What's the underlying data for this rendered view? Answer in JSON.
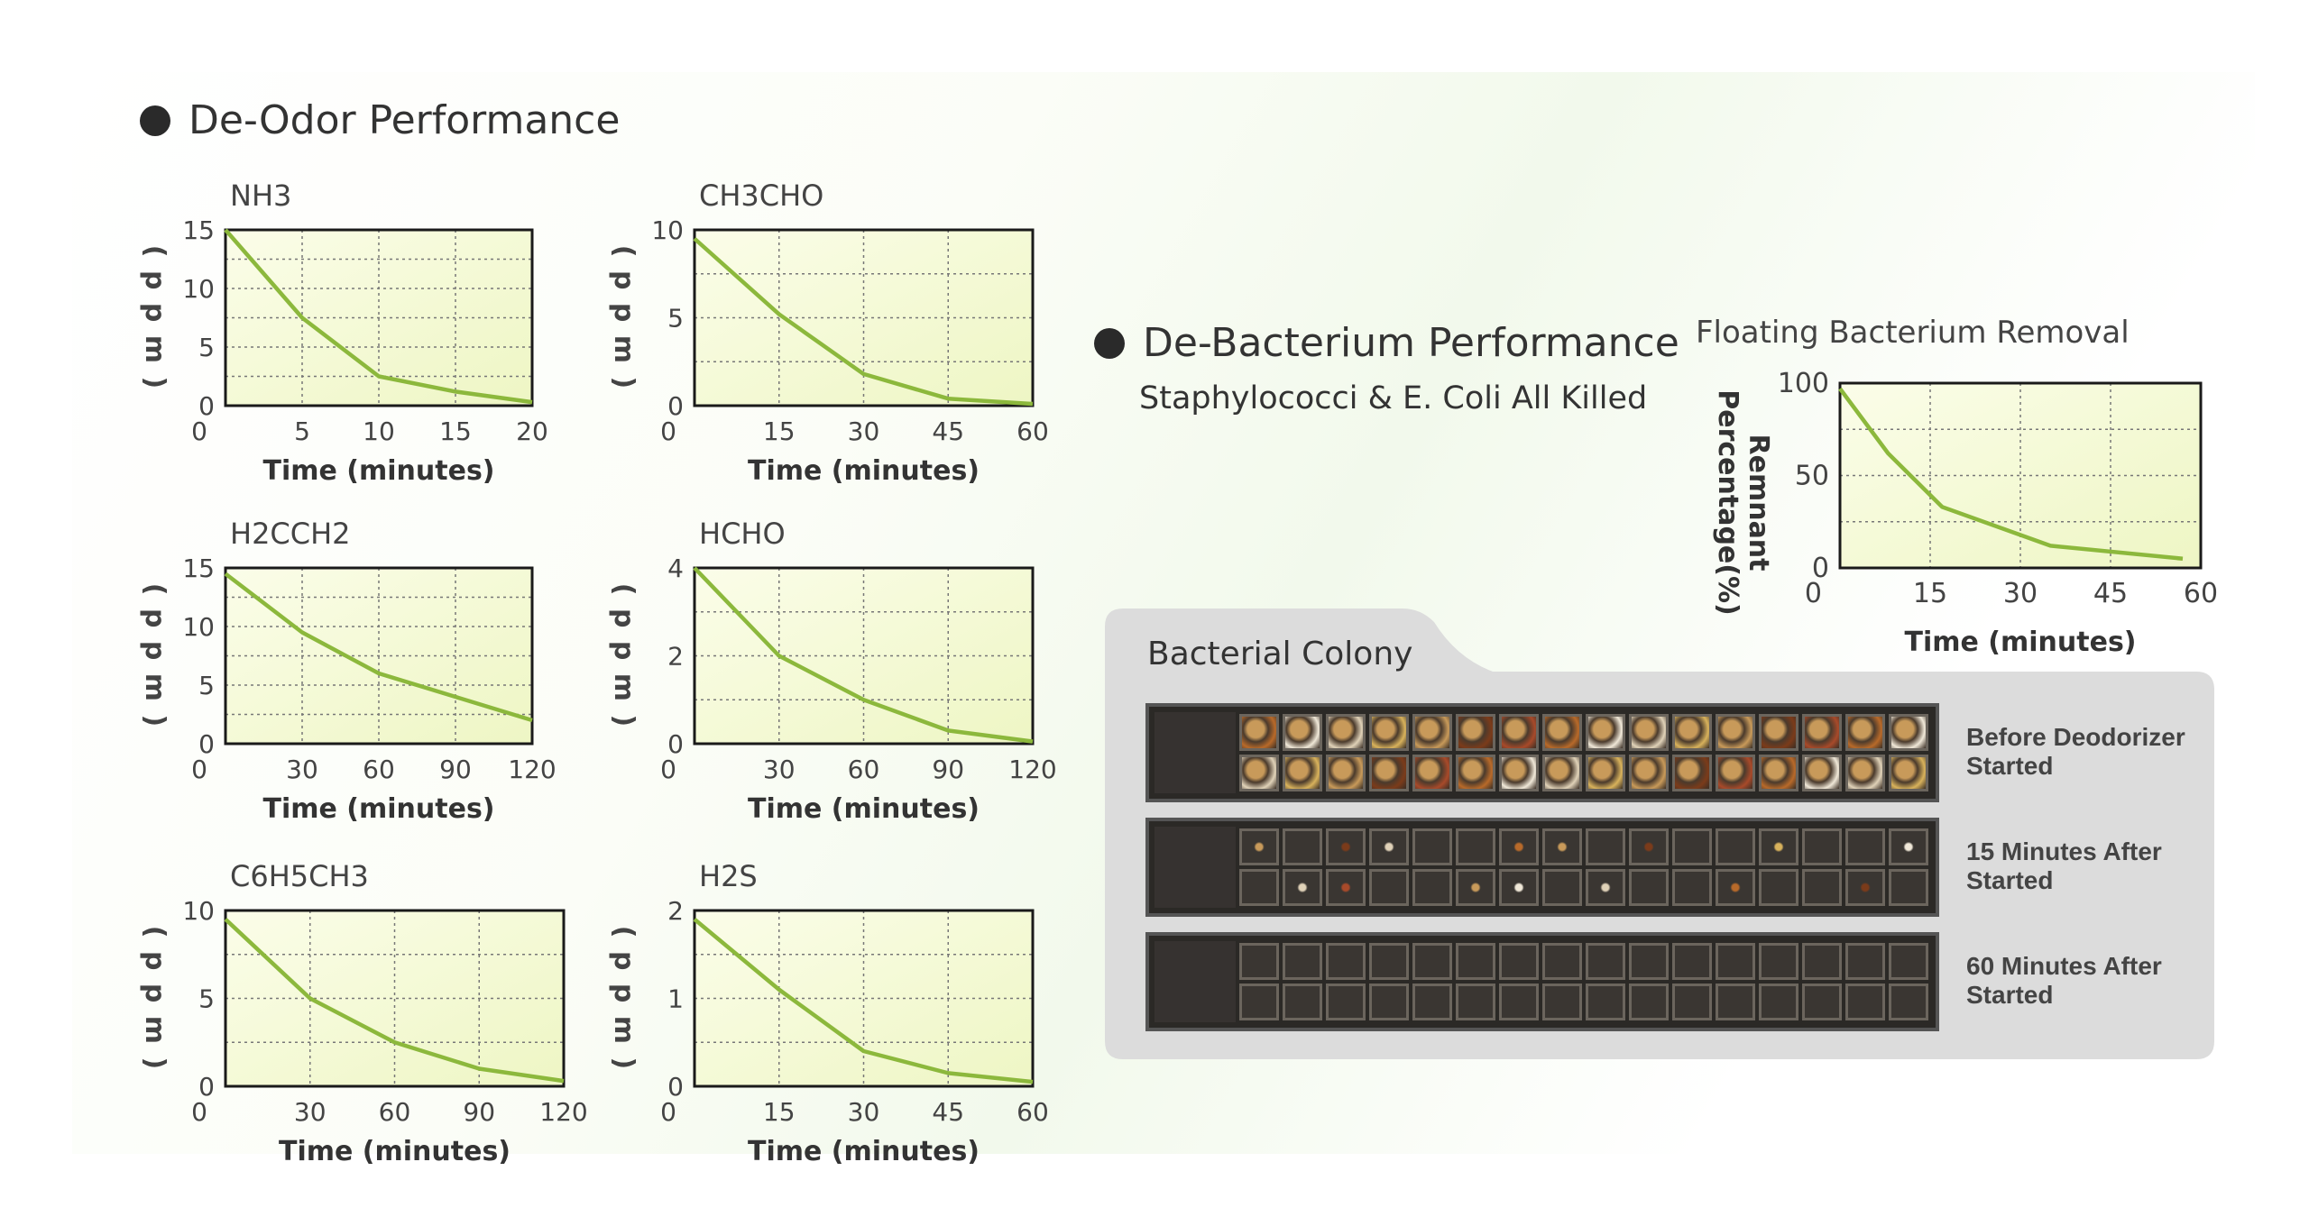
{
  "deodor": {
    "title": "De-Odor Performance"
  },
  "debacterium": {
    "title": "De-Bacterium Performance",
    "subtitle": "Staphylococci & E. Coli All Killed"
  },
  "colony": {
    "title": "Bacterial Colony",
    "rows": [
      {
        "label_line1": "Before Deodorizer",
        "label_line2": "Started",
        "growth": "heavy"
      },
      {
        "label_line1": "15 Minutes After",
        "label_line2": "Started",
        "growth": "sparse"
      },
      {
        "label_line1": "60 Minutes After",
        "label_line2": "Started",
        "growth": "none"
      }
    ]
  },
  "colors": {
    "line": "#8cb83c",
    "plot_bg_light": "#fbfde9",
    "plot_bg_dark": "#eef6c4",
    "frame": "#1a1a1a"
  },
  "chart_data": [
    {
      "type": "line",
      "title": "NH3",
      "xlabel": "Time (minutes)",
      "ylabel": "( p p m )",
      "x": [
        0,
        5,
        10,
        15,
        20
      ],
      "y": [
        15,
        7.5,
        2.5,
        1.2,
        0.3
      ],
      "xticks": [
        5,
        10,
        15,
        20
      ],
      "xlim": [
        0,
        20
      ],
      "yticks": [
        0,
        5,
        10,
        15
      ],
      "ylim": [
        0,
        15
      ],
      "grid": true
    },
    {
      "type": "line",
      "title": "CH3CHO",
      "xlabel": "Time (minutes)",
      "ylabel": "( p p m )",
      "x": [
        0,
        15,
        30,
        45,
        60
      ],
      "y": [
        9.5,
        5.2,
        1.8,
        0.4,
        0.1
      ],
      "xticks": [
        15,
        30,
        45,
        60
      ],
      "xlim": [
        0,
        60
      ],
      "yticks": [
        0,
        5,
        10
      ],
      "ylim": [
        0,
        10
      ],
      "grid": true
    },
    {
      "type": "line",
      "title": "H2CCH2",
      "xlabel": "Time (minutes)",
      "ylabel": "( p p m )",
      "x": [
        0,
        30,
        60,
        90,
        120
      ],
      "y": [
        14.5,
        9.5,
        6,
        4,
        2
      ],
      "xticks": [
        30,
        60,
        90,
        120
      ],
      "xlim": [
        0,
        120
      ],
      "yticks": [
        0,
        5,
        10,
        15
      ],
      "ylim": [
        0,
        15
      ],
      "grid": true
    },
    {
      "type": "line",
      "title": "HCHO",
      "xlabel": "Time (minutes)",
      "ylabel": "( p p m )",
      "x": [
        0,
        30,
        60,
        90,
        120
      ],
      "y": [
        4,
        2,
        1,
        0.3,
        0.05
      ],
      "xticks": [
        30,
        60,
        90,
        120
      ],
      "xlim": [
        0,
        120
      ],
      "yticks": [
        0,
        2,
        4
      ],
      "ylim": [
        0,
        4
      ],
      "grid": true
    },
    {
      "type": "line",
      "title": "C6H5CH3",
      "xlabel": "Time (minutes)",
      "ylabel": "( p p m )",
      "x": [
        0,
        30,
        60,
        90,
        120
      ],
      "y": [
        9.5,
        5,
        2.5,
        1,
        0.3
      ],
      "xticks": [
        30,
        60,
        90,
        120
      ],
      "xlim": [
        0,
        120
      ],
      "yticks": [
        0,
        5,
        10
      ],
      "ylim": [
        0,
        10
      ],
      "grid": true
    },
    {
      "type": "line",
      "title": "H2S",
      "xlabel": "Time (minutes)",
      "ylabel": "( p p m )",
      "x": [
        0,
        15,
        30,
        45,
        60
      ],
      "y": [
        1.9,
        1.1,
        0.4,
        0.15,
        0.05
      ],
      "xticks": [
        15,
        30,
        45,
        60
      ],
      "xlim": [
        0,
        60
      ],
      "yticks": [
        0,
        1,
        2
      ],
      "ylim": [
        0,
        2
      ],
      "grid": true
    },
    {
      "type": "line",
      "title": "Floating Bacterium Removal",
      "xlabel": "Time (minutes)",
      "ylabel": "Remnant Percentage(%)",
      "x": [
        0,
        8,
        17,
        35,
        57
      ],
      "y": [
        97,
        62,
        33,
        12,
        5
      ],
      "xticks": [
        15,
        30,
        45,
        60
      ],
      "xlim": [
        0,
        60
      ],
      "yticks": [
        0,
        50,
        100
      ],
      "ylim": [
        0,
        100
      ],
      "grid": true
    }
  ]
}
